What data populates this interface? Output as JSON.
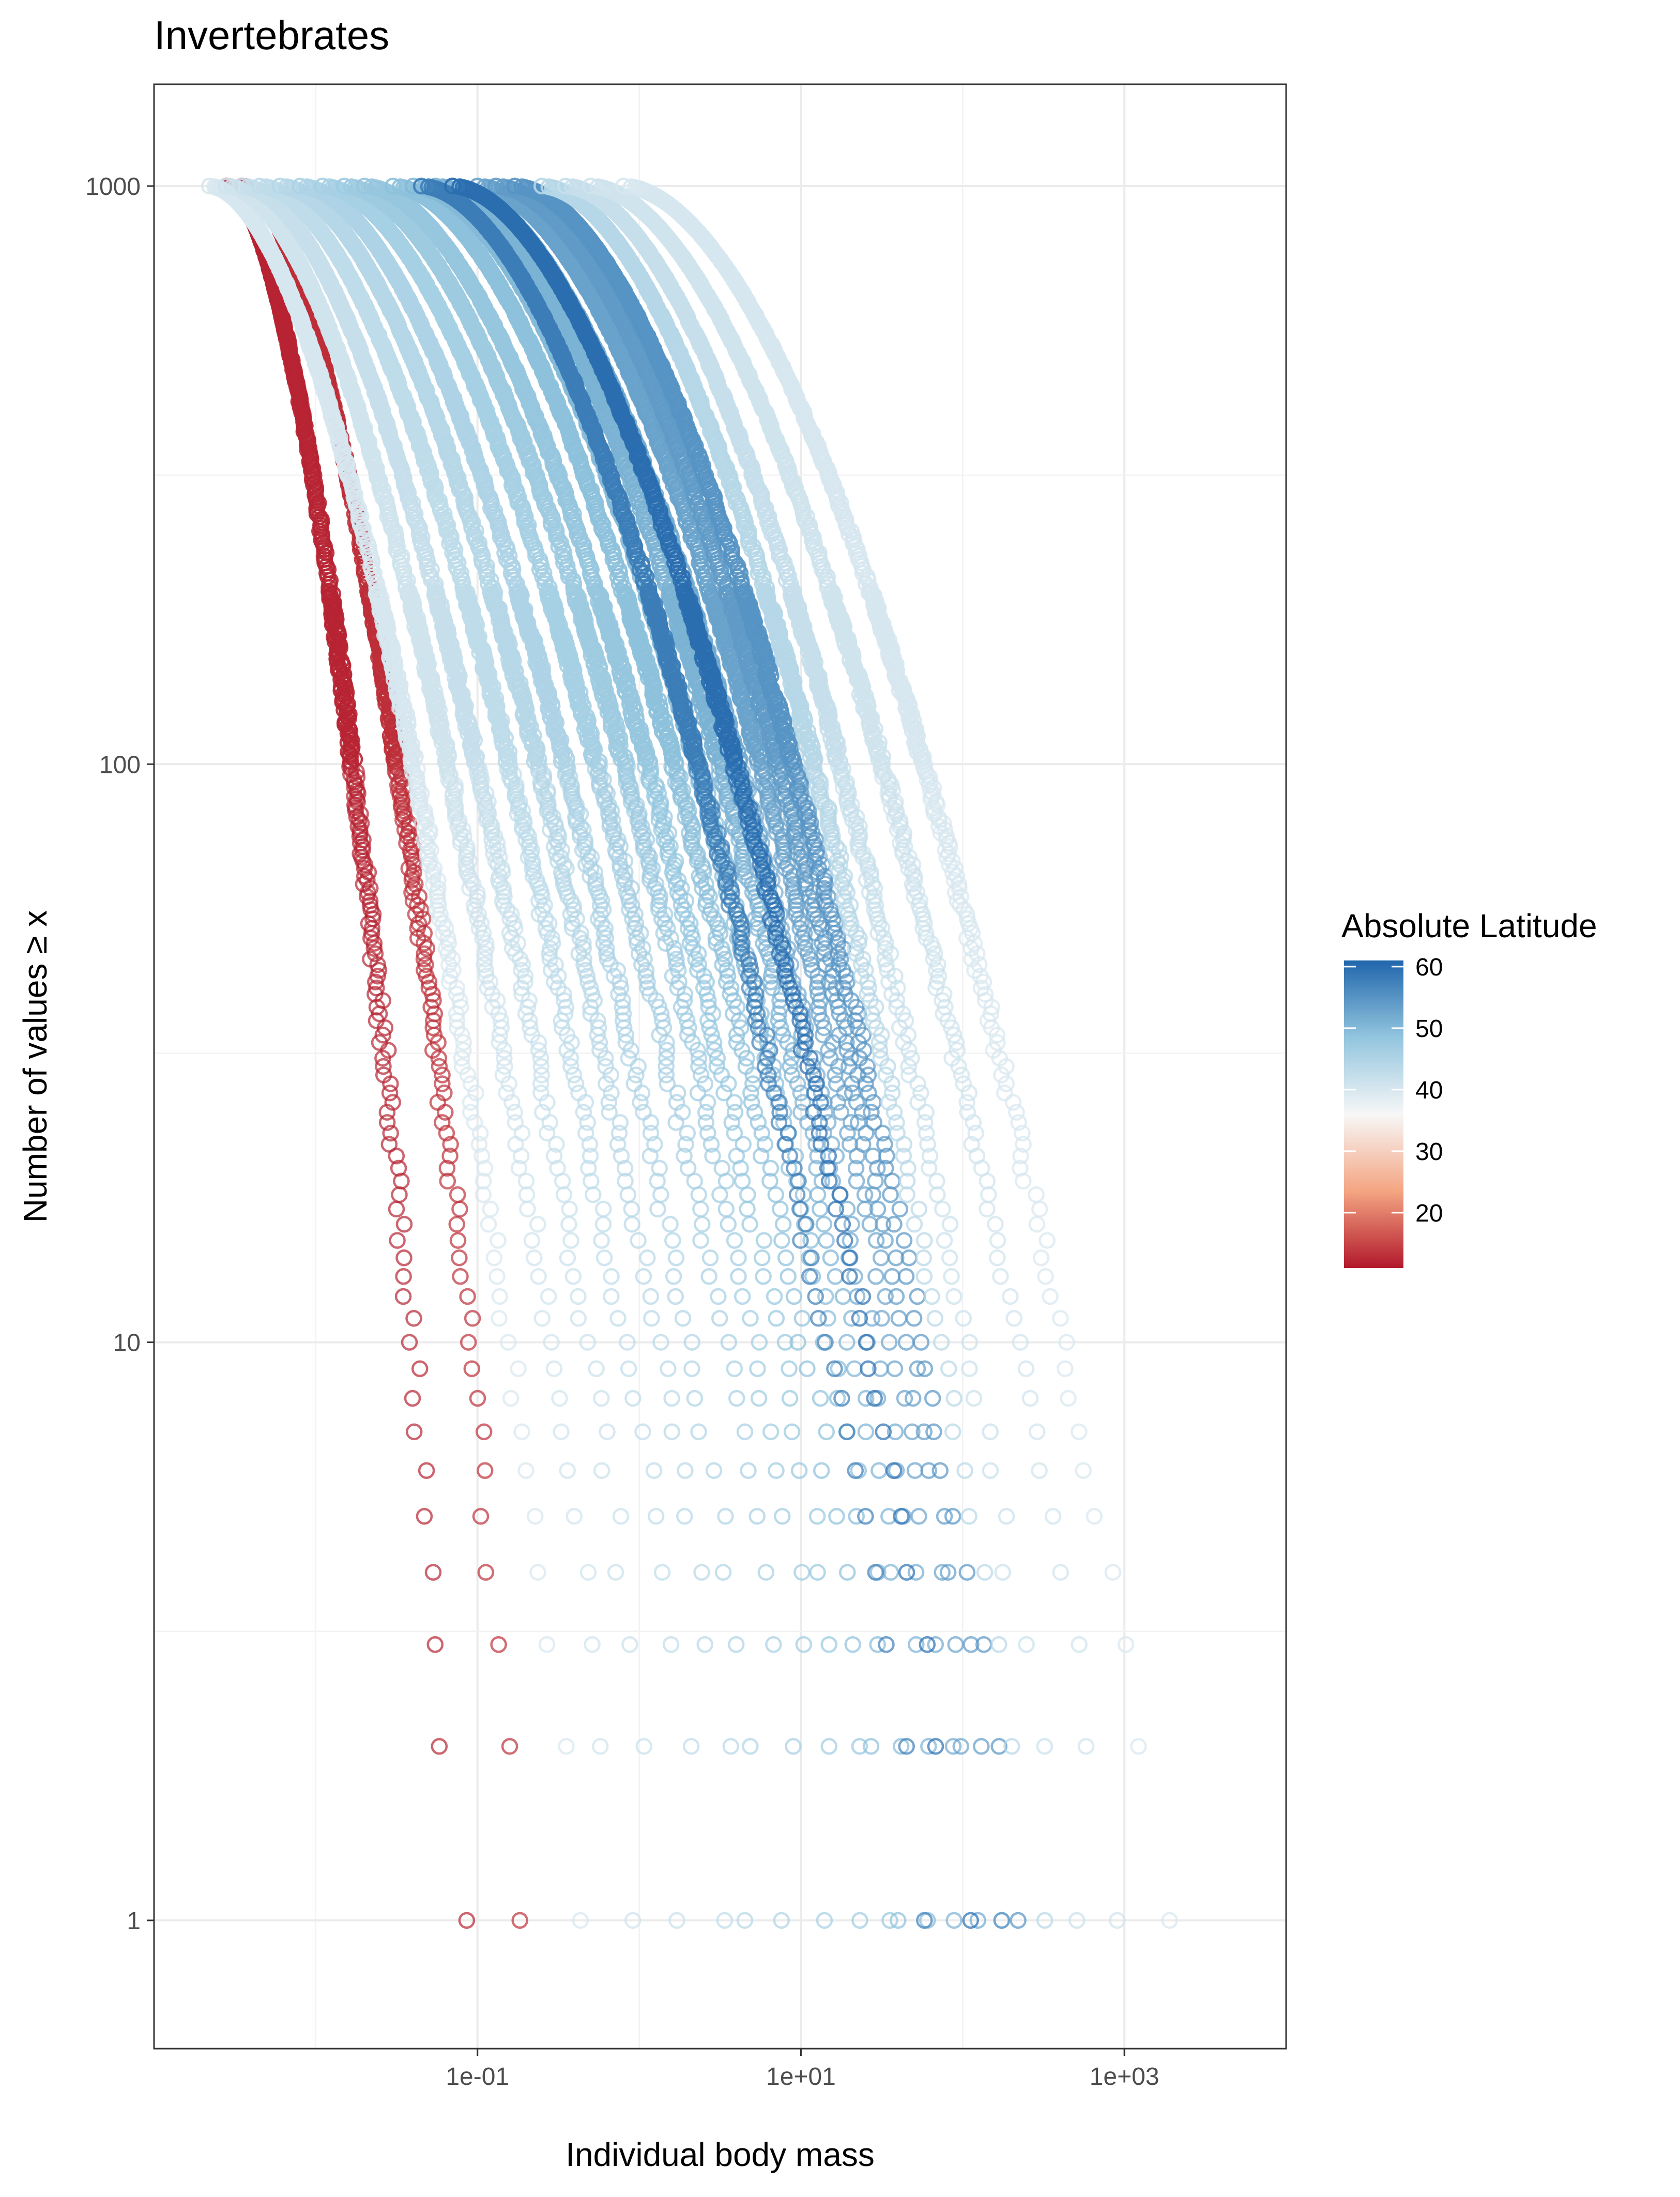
{
  "chart_data": {
    "type": "scatter",
    "title": "Invertebrates",
    "xlabel": "Individual body mass",
    "ylabel": "Number of values ≥ x",
    "x_scale": "log10",
    "y_scale": "log10",
    "xlim": [
      0.001,
      10000
    ],
    "ylim": [
      0.6,
      1500
    ],
    "x_ticks": [
      0.1,
      10,
      1000
    ],
    "x_tick_labels": [
      "1e-01",
      "1e+01",
      "1e+03"
    ],
    "y_ticks": [
      1,
      10,
      100,
      1000
    ],
    "y_tick_labels": [
      "1",
      "10",
      "100",
      "1000"
    ],
    "grid": true,
    "marker": "open-circle",
    "legend": {
      "title": "Absolute Latitude",
      "position": "right",
      "min": 11,
      "max": 61,
      "breaks": [
        60,
        50,
        40,
        30,
        20
      ],
      "colors": {
        "low": "#b2182b",
        "mid_low": "#f4a582",
        "mid": "#f7f7f7",
        "mid_high": "#92c5de",
        "high": "#2166ac"
      }
    },
    "series": [
      {
        "latitude": 12,
        "xmin": 0.0028,
        "xmax": 0.075,
        "n": 1000
      },
      {
        "latitude": 13,
        "xmin": 0.0035,
        "xmax": 0.2,
        "n": 1000
      },
      {
        "latitude": 40,
        "xmin": 0.0022,
        "xmax": 0.45,
        "n": 1000
      },
      {
        "latitude": 41,
        "xmin": 0.0028,
        "xmax": 0.9,
        "n": 1000
      },
      {
        "latitude": 42,
        "xmin": 0.0035,
        "xmax": 1.6,
        "n": 1000
      },
      {
        "latitude": 43,
        "xmin": 0.0045,
        "xmax": 3.0,
        "n": 1000
      },
      {
        "latitude": 44,
        "xmin": 0.006,
        "xmax": 5.0,
        "n": 1000
      },
      {
        "latitude": 45,
        "xmin": 0.008,
        "xmax": 8.0,
        "n": 1000
      },
      {
        "latitude": 46,
        "xmin": 0.011,
        "xmax": 14.0,
        "n": 1000
      },
      {
        "latitude": 47,
        "xmin": 0.015,
        "xmax": 22.0,
        "n": 1000
      },
      {
        "latitude": 48,
        "xmin": 0.02,
        "xmax": 32.0,
        "n": 1000
      },
      {
        "latitude": 49,
        "xmin": 0.03,
        "xmax": 45.0,
        "n": 1000
      },
      {
        "latitude": 50,
        "xmin": 0.04,
        "xmax": 65.0,
        "n": 1000
      },
      {
        "latitude": 51,
        "xmin": 0.055,
        "xmax": 90.0,
        "n": 1000
      },
      {
        "latitude": 52,
        "xmin": 0.07,
        "xmax": 120.0,
        "n": 1000
      },
      {
        "latitude": 53,
        "xmin": 0.1,
        "xmax": 160.0,
        "n": 1000
      },
      {
        "latitude": 54,
        "xmin": 0.13,
        "xmax": 200.0,
        "n": 1000
      },
      {
        "latitude": 55,
        "xmin": 0.17,
        "xmax": 240.0,
        "n": 1000
      },
      {
        "latitude": 58,
        "xmin": 0.045,
        "xmax": 60.0,
        "n": 1000
      },
      {
        "latitude": 60,
        "xmin": 0.07,
        "xmax": 110.0,
        "n": 1000
      },
      {
        "latitude": 44,
        "xmin": 0.25,
        "xmax": 300.0,
        "n": 1000
      },
      {
        "latitude": 42,
        "xmin": 0.35,
        "xmax": 450.0,
        "n": 1000
      },
      {
        "latitude": 41,
        "xmin": 0.5,
        "xmax": 1000.0,
        "n": 1000
      },
      {
        "latitude": 40,
        "xmin": 0.8,
        "xmax": 2000.0,
        "n": 1000
      }
    ]
  }
}
